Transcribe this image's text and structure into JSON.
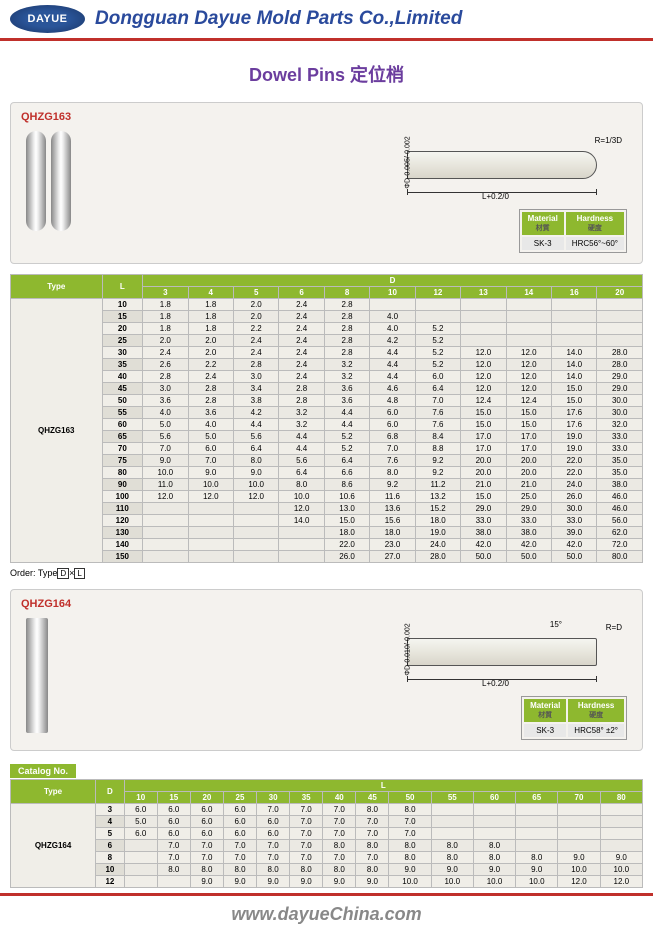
{
  "header": {
    "logo_text": "DAYUE",
    "company_name": "Dongguan Dayue Mold Parts Co.,Limited"
  },
  "title": "Dowel Pins 定位梢",
  "section163": {
    "label": "QHZG163",
    "drawing": {
      "r": "R=1/3D",
      "d": "ΦD-0.005/-0.002",
      "l": "L+0.2/0"
    },
    "material": {
      "mat_label": "Material",
      "mat_sub": "材質",
      "mat_val": "SK-3",
      "hard_label": "Hardness",
      "hard_sub": "硬度",
      "hard_val": "HRC56°~60°"
    },
    "table": {
      "type_header": "Type",
      "l_header": "L",
      "d_header": "D",
      "d_cols": [
        "3",
        "4",
        "5",
        "6",
        "8",
        "10",
        "12",
        "13",
        "14",
        "16",
        "20"
      ],
      "type_val": "QHZG163",
      "rows": [
        {
          "l": "10",
          "v": [
            "1.8",
            "1.8",
            "2.0",
            "2.4",
            "2.8",
            "",
            "",
            "",
            "",
            "",
            ""
          ]
        },
        {
          "l": "15",
          "v": [
            "1.8",
            "1.8",
            "2.0",
            "2.4",
            "2.8",
            "4.0",
            "",
            "",
            "",
            "",
            ""
          ]
        },
        {
          "l": "20",
          "v": [
            "1.8",
            "1.8",
            "2.2",
            "2.4",
            "2.8",
            "4.0",
            "5.2",
            "",
            "",
            "",
            ""
          ]
        },
        {
          "l": "25",
          "v": [
            "2.0",
            "2.0",
            "2.4",
            "2.4",
            "2.8",
            "4.2",
            "5.2",
            "",
            "",
            "",
            ""
          ]
        },
        {
          "l": "30",
          "v": [
            "2.4",
            "2.0",
            "2.4",
            "2.4",
            "2.8",
            "4.4",
            "5.2",
            "12.0",
            "12.0",
            "14.0",
            "28.0"
          ]
        },
        {
          "l": "35",
          "v": [
            "2.6",
            "2.2",
            "2.8",
            "2.4",
            "3.2",
            "4.4",
            "5.2",
            "12.0",
            "12.0",
            "14.0",
            "28.0"
          ]
        },
        {
          "l": "40",
          "v": [
            "2.8",
            "2.4",
            "3.0",
            "2.4",
            "3.2",
            "4.4",
            "6.0",
            "12.0",
            "12.0",
            "14.0",
            "29.0"
          ]
        },
        {
          "l": "45",
          "v": [
            "3.0",
            "2.8",
            "3.4",
            "2.8",
            "3.6",
            "4.6",
            "6.4",
            "12.0",
            "12.0",
            "15.0",
            "29.0"
          ]
        },
        {
          "l": "50",
          "v": [
            "3.6",
            "2.8",
            "3.8",
            "2.8",
            "3.6",
            "4.8",
            "7.0",
            "12.4",
            "12.4",
            "15.0",
            "30.0"
          ]
        },
        {
          "l": "55",
          "v": [
            "4.0",
            "3.6",
            "4.2",
            "3.2",
            "4.4",
            "6.0",
            "7.6",
            "15.0",
            "15.0",
            "17.6",
            "30.0"
          ]
        },
        {
          "l": "60",
          "v": [
            "5.0",
            "4.0",
            "4.4",
            "3.2",
            "4.4",
            "6.0",
            "7.6",
            "15.0",
            "15.0",
            "17.6",
            "32.0"
          ]
        },
        {
          "l": "65",
          "v": [
            "5.6",
            "5.0",
            "5.6",
            "4.4",
            "5.2",
            "6.8",
            "8.4",
            "17.0",
            "17.0",
            "19.0",
            "33.0"
          ]
        },
        {
          "l": "70",
          "v": [
            "7.0",
            "6.0",
            "6.4",
            "4.4",
            "5.2",
            "7.0",
            "8.8",
            "17.0",
            "17.0",
            "19.0",
            "33.0"
          ]
        },
        {
          "l": "75",
          "v": [
            "9.0",
            "7.0",
            "8.0",
            "5.6",
            "6.4",
            "7.6",
            "9.2",
            "20.0",
            "20.0",
            "22.0",
            "35.0"
          ]
        },
        {
          "l": "80",
          "v": [
            "10.0",
            "9.0",
            "9.0",
            "6.4",
            "6.6",
            "8.0",
            "9.2",
            "20.0",
            "20.0",
            "22.0",
            "35.0"
          ]
        },
        {
          "l": "90",
          "v": [
            "11.0",
            "10.0",
            "10.0",
            "8.0",
            "8.6",
            "9.2",
            "11.2",
            "21.0",
            "21.0",
            "24.0",
            "38.0"
          ]
        },
        {
          "l": "100",
          "v": [
            "12.0",
            "12.0",
            "12.0",
            "10.0",
            "10.6",
            "11.6",
            "13.2",
            "15.0",
            "25.0",
            "26.0",
            "46.0"
          ]
        },
        {
          "l": "110",
          "v": [
            "",
            "",
            "",
            "12.0",
            "13.0",
            "13.6",
            "15.2",
            "29.0",
            "29.0",
            "30.0",
            "46.0"
          ]
        },
        {
          "l": "120",
          "v": [
            "",
            "",
            "",
            "14.0",
            "15.0",
            "15.6",
            "18.0",
            "33.0",
            "33.0",
            "33.0",
            "56.0"
          ]
        },
        {
          "l": "130",
          "v": [
            "",
            "",
            "",
            "",
            "18.0",
            "18.0",
            "19.0",
            "38.0",
            "38.0",
            "39.0",
            "62.0"
          ]
        },
        {
          "l": "140",
          "v": [
            "",
            "",
            "",
            "",
            "22.0",
            "23.0",
            "24.0",
            "42.0",
            "42.0",
            "42.0",
            "72.0"
          ]
        },
        {
          "l": "150",
          "v": [
            "",
            "",
            "",
            "",
            "26.0",
            "27.0",
            "28.0",
            "50.0",
            "50.0",
            "50.0",
            "80.0"
          ]
        }
      ]
    },
    "order_text": "Order:  Type"
  },
  "section164": {
    "label": "QHZG164",
    "drawing": {
      "r": "R=D",
      "d": "ΦD-0.010/-0.002",
      "l": "L+0.2/0",
      "angle": "15°"
    },
    "material": {
      "mat_label": "Material",
      "mat_sub": "材質",
      "mat_val": "SK-3",
      "hard_label": "Hardness",
      "hard_sub": "硬度",
      "hard_val": "HRC58° ±2°"
    },
    "catalog_header": "Catalog No.",
    "table": {
      "type_header": "Type",
      "d_header": "D",
      "l_header": "L",
      "l_cols": [
        "10",
        "15",
        "20",
        "25",
        "30",
        "35",
        "40",
        "45",
        "50",
        "55",
        "60",
        "65",
        "70",
        "80"
      ],
      "type_val": "QHZG164",
      "rows": [
        {
          "d": "3",
          "v": [
            "6.0",
            "6.0",
            "6.0",
            "6.0",
            "7.0",
            "7.0",
            "7.0",
            "8.0",
            "8.0",
            "",
            "",
            "",
            "",
            ""
          ]
        },
        {
          "d": "4",
          "v": [
            "5.0",
            "6.0",
            "6.0",
            "6.0",
            "6.0",
            "7.0",
            "7.0",
            "7.0",
            "7.0",
            "",
            "",
            "",
            "",
            ""
          ]
        },
        {
          "d": "5",
          "v": [
            "6.0",
            "6.0",
            "6.0",
            "6.0",
            "6.0",
            "7.0",
            "7.0",
            "7.0",
            "7.0",
            "",
            "",
            "",
            "",
            ""
          ]
        },
        {
          "d": "6",
          "v": [
            "",
            "7.0",
            "7.0",
            "7.0",
            "7.0",
            "7.0",
            "8.0",
            "8.0",
            "8.0",
            "8.0",
            "8.0",
            "",
            "",
            ""
          ]
        },
        {
          "d": "8",
          "v": [
            "",
            "7.0",
            "7.0",
            "7.0",
            "7.0",
            "7.0",
            "7.0",
            "7.0",
            "8.0",
            "8.0",
            "8.0",
            "8.0",
            "9.0",
            "9.0"
          ]
        },
        {
          "d": "10",
          "v": [
            "",
            "8.0",
            "8.0",
            "8.0",
            "8.0",
            "8.0",
            "8.0",
            "8.0",
            "9.0",
            "9.0",
            "9.0",
            "9.0",
            "10.0",
            "10.0"
          ]
        },
        {
          "d": "12",
          "v": [
            "",
            "",
            "9.0",
            "9.0",
            "9.0",
            "9.0",
            "9.0",
            "9.0",
            "10.0",
            "10.0",
            "10.0",
            "10.0",
            "12.0",
            "12.0"
          ]
        }
      ]
    }
  },
  "footer": {
    "url": "www.dayueChina.com"
  }
}
